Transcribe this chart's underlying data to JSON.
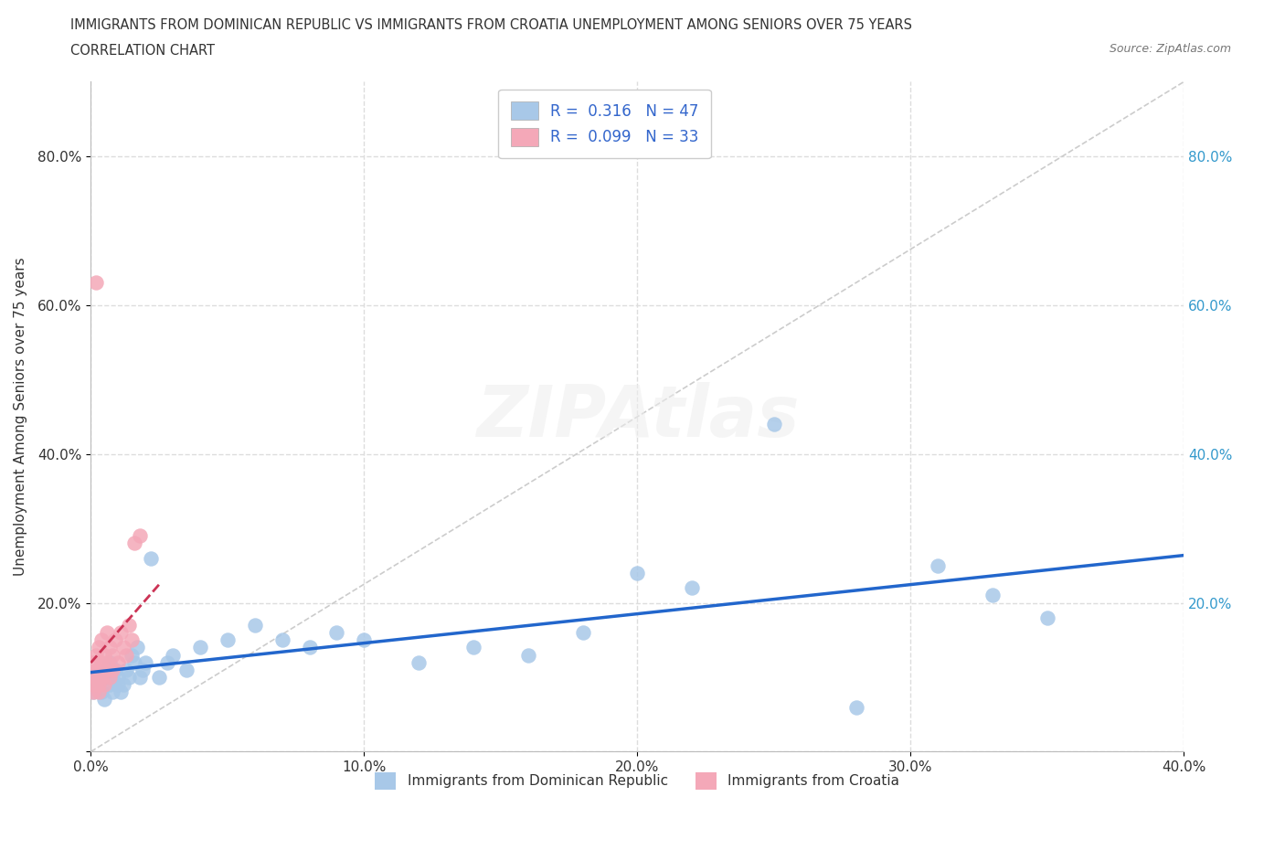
{
  "title_line1": "IMMIGRANTS FROM DOMINICAN REPUBLIC VS IMMIGRANTS FROM CROATIA UNEMPLOYMENT AMONG SENIORS OVER 75 YEARS",
  "title_line2": "CORRELATION CHART",
  "source_text": "Source: ZipAtlas.com",
  "ylabel": "Unemployment Among Seniors over 75 years",
  "xlim": [
    0.0,
    0.4
  ],
  "ylim": [
    0.0,
    0.9
  ],
  "xtick_vals": [
    0.0,
    0.1,
    0.2,
    0.3,
    0.4
  ],
  "ytick_vals": [
    0.0,
    0.2,
    0.4,
    0.6,
    0.8
  ],
  "R_blue": 0.316,
  "N_blue": 47,
  "R_pink": 0.099,
  "N_pink": 33,
  "color_blue": "#a8c8e8",
  "color_pink": "#f4a8b8",
  "trendline_blue": "#2266cc",
  "trendline_pink": "#cc3355",
  "trendline_pink_dashed": true,
  "legend_blue": "Immigrants from Dominican Republic",
  "legend_pink": "Immigrants from Croatia",
  "watermark": "ZIPAtlas",
  "blue_x": [
    0.001,
    0.002,
    0.003,
    0.004,
    0.005,
    0.006,
    0.006,
    0.007,
    0.007,
    0.008,
    0.008,
    0.009,
    0.01,
    0.01,
    0.011,
    0.012,
    0.013,
    0.014,
    0.015,
    0.016,
    0.017,
    0.018,
    0.019,
    0.02,
    0.022,
    0.025,
    0.028,
    0.03,
    0.035,
    0.04,
    0.05,
    0.06,
    0.07,
    0.08,
    0.09,
    0.1,
    0.12,
    0.14,
    0.16,
    0.18,
    0.2,
    0.22,
    0.25,
    0.28,
    0.31,
    0.33,
    0.35
  ],
  "blue_y": [
    0.08,
    0.1,
    0.09,
    0.08,
    0.07,
    0.11,
    0.1,
    0.09,
    0.12,
    0.1,
    0.08,
    0.11,
    0.1,
    0.09,
    0.08,
    0.09,
    0.11,
    0.1,
    0.13,
    0.12,
    0.14,
    0.1,
    0.11,
    0.12,
    0.26,
    0.1,
    0.12,
    0.13,
    0.11,
    0.14,
    0.15,
    0.17,
    0.15,
    0.14,
    0.16,
    0.15,
    0.12,
    0.14,
    0.13,
    0.16,
    0.24,
    0.22,
    0.44,
    0.06,
    0.25,
    0.21,
    0.18
  ],
  "pink_x": [
    0.001,
    0.001,
    0.001,
    0.001,
    0.002,
    0.002,
    0.002,
    0.003,
    0.003,
    0.003,
    0.003,
    0.004,
    0.004,
    0.004,
    0.005,
    0.005,
    0.005,
    0.006,
    0.006,
    0.007,
    0.007,
    0.008,
    0.008,
    0.009,
    0.01,
    0.011,
    0.012,
    0.013,
    0.014,
    0.015,
    0.016,
    0.018,
    0.002
  ],
  "pink_y": [
    0.1,
    0.09,
    0.12,
    0.08,
    0.11,
    0.1,
    0.13,
    0.09,
    0.11,
    0.14,
    0.08,
    0.12,
    0.1,
    0.15,
    0.09,
    0.13,
    0.11,
    0.12,
    0.16,
    0.1,
    0.14,
    0.11,
    0.13,
    0.15,
    0.12,
    0.16,
    0.14,
    0.13,
    0.17,
    0.15,
    0.28,
    0.29,
    0.63
  ]
}
